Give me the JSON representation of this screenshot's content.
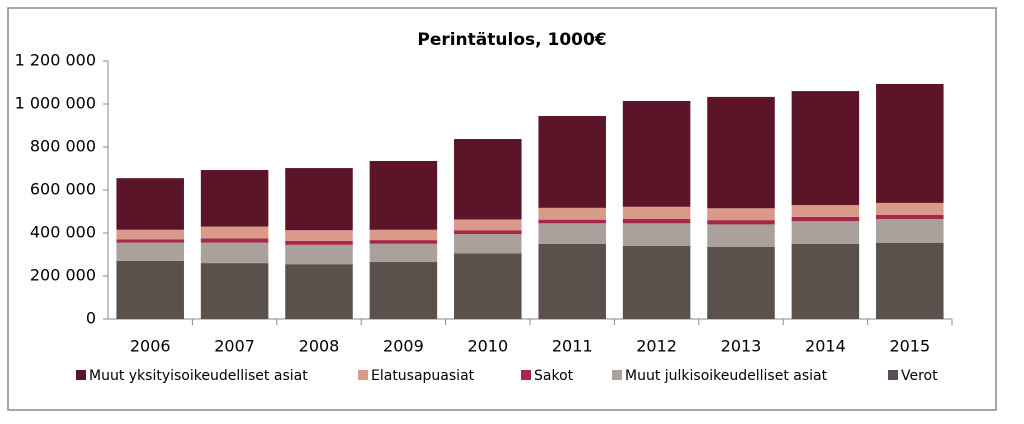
{
  "chart_data": {
    "type": "bar",
    "stacked": true,
    "title": "Perintätulos, 1000€",
    "categories": [
      "2006",
      "2007",
      "2008",
      "2009",
      "2010",
      "2011",
      "2012",
      "2013",
      "2014",
      "2015"
    ],
    "series": [
      {
        "name": "Muut yksityisoikeudelliset asiat",
        "color": "#5c1428",
        "values": [
          240000,
          263000,
          289000,
          320000,
          374000,
          427000,
          492000,
          518000,
          530000,
          553000
        ]
      },
      {
        "name": "Elatusapuasiat",
        "color": "#d99a8a",
        "values": [
          45000,
          55000,
          50000,
          48000,
          50000,
          55000,
          57000,
          55000,
          55000,
          55000
        ]
      },
      {
        "name": "Sakot",
        "color": "#a5284a",
        "values": [
          15000,
          20000,
          18000,
          17000,
          18000,
          17000,
          20000,
          20000,
          20000,
          20000
        ]
      },
      {
        "name": "Muut julkisoikeudelliset asiat",
        "color": "#aaa09c",
        "values": [
          85000,
          95000,
          90000,
          85000,
          90000,
          95000,
          105000,
          105000,
          105000,
          110000
        ]
      },
      {
        "name": "Verot",
        "color": "#5a514d",
        "values": [
          270000,
          260000,
          255000,
          265000,
          305000,
          350000,
          340000,
          335000,
          350000,
          355000
        ]
      }
    ],
    "ylim": [
      0,
      1200000
    ],
    "yticks": [
      0,
      {
        "value": 200000,
        "label": "200 000"
      },
      {
        "value": 400000,
        "label": "400 000"
      },
      {
        "value": 600000,
        "label": "600 000"
      },
      {
        "value": 800000,
        "label": "800 000"
      },
      {
        "value": 1000000,
        "label": "1 000 000"
      },
      {
        "value": 1200000,
        "label": "1 200 000"
      }
    ],
    "grid": false,
    "legend": "bottom"
  }
}
